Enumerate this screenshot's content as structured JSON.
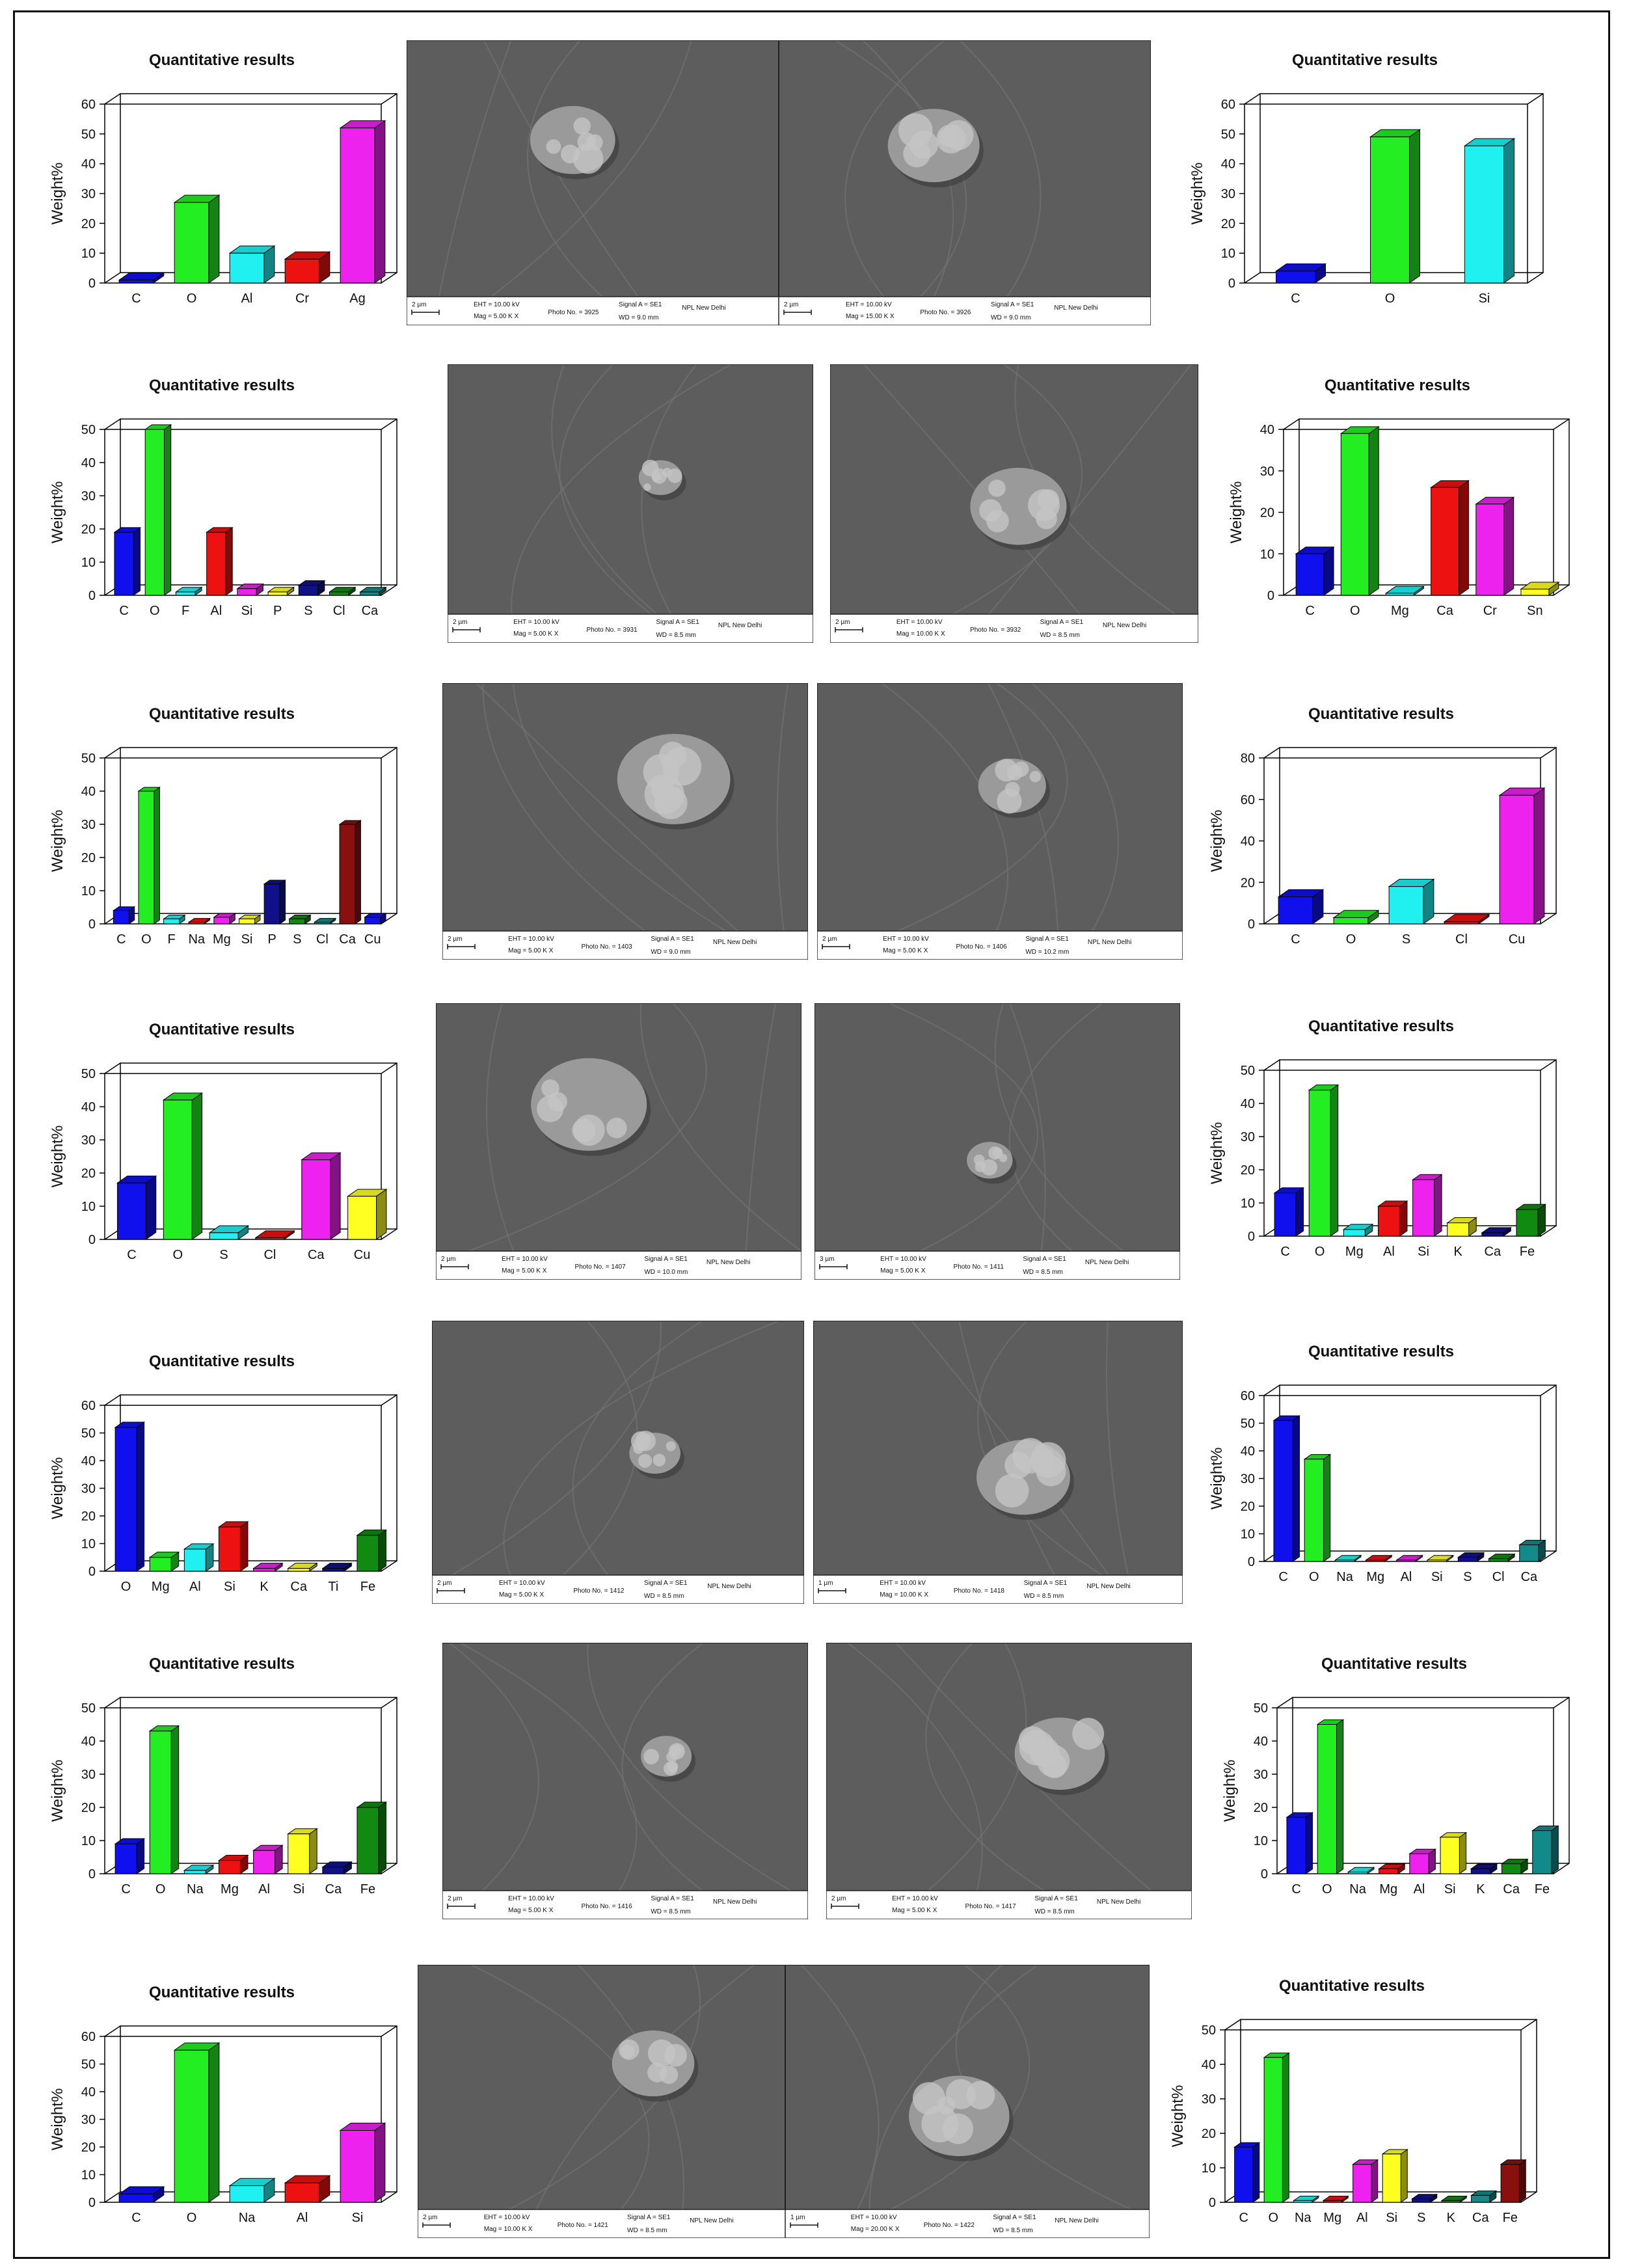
{
  "chart_data": [
    {
      "type": "bar",
      "title": "Quantitative results",
      "ylabel": "Weight%",
      "ylim": [
        0,
        60
      ],
      "yticks": [
        0,
        10,
        20,
        30,
        40,
        50,
        60
      ],
      "categories": [
        "C",
        "O",
        "Al",
        "Cr",
        "Ag"
      ],
      "values": [
        1,
        27,
        10,
        8,
        52
      ]
    },
    {
      "type": "bar",
      "title": "Quantitative results",
      "ylabel": "Weight%",
      "ylim": [
        0,
        60
      ],
      "yticks": [
        0,
        10,
        20,
        30,
        40,
        50,
        60
      ],
      "categories": [
        "C",
        "O",
        "Si"
      ],
      "values": [
        4,
        49,
        46
      ]
    },
    {
      "type": "bar",
      "title": "Quantitative results",
      "ylabel": "Weight%",
      "ylim": [
        0,
        50
      ],
      "yticks": [
        0,
        10,
        20,
        30,
        40,
        50
      ],
      "categories": [
        "C",
        "O",
        "F",
        "Al",
        "Si",
        "P",
        "S",
        "Cl",
        "Ca"
      ],
      "values": [
        19,
        50,
        1,
        19,
        2,
        1,
        3,
        1,
        1
      ]
    },
    {
      "type": "bar",
      "title": "Quantitative results",
      "ylabel": "Weight%",
      "ylim": [
        0,
        40
      ],
      "yticks": [
        0,
        10,
        20,
        30,
        40
      ],
      "categories": [
        "C",
        "O",
        "Mg",
        "Ca",
        "Cr",
        "Sn"
      ],
      "values": [
        10,
        39,
        0.5,
        26,
        22,
        1.5
      ]
    },
    {
      "type": "bar",
      "title": "Quantitative results",
      "ylabel": "Weight%",
      "ylim": [
        0,
        50
      ],
      "yticks": [
        0,
        10,
        20,
        30,
        40,
        50
      ],
      "categories": [
        "C",
        "O",
        "F",
        "Na",
        "Mg",
        "Si",
        "P",
        "S",
        "Cl",
        "Ca",
        "Cu"
      ],
      "values": [
        4,
        40,
        1.5,
        0.5,
        2,
        1.5,
        12,
        1.5,
        0.5,
        30,
        2
      ]
    },
    {
      "type": "bar",
      "title": "Quantitative results",
      "ylabel": "Weight%",
      "ylim": [
        0,
        80
      ],
      "yticks": [
        0,
        20,
        40,
        60,
        80
      ],
      "categories": [
        "C",
        "O",
        "S",
        "Cl",
        "Cu"
      ],
      "values": [
        13,
        3,
        18,
        1,
        62
      ]
    },
    {
      "type": "bar",
      "title": "Quantitative results",
      "ylabel": "Weight%",
      "ylim": [
        0,
        50
      ],
      "yticks": [
        0,
        10,
        20,
        30,
        40,
        50
      ],
      "categories": [
        "C",
        "O",
        "S",
        "Cl",
        "Ca",
        "Cu"
      ],
      "values": [
        17,
        42,
        2,
        0.5,
        24,
        13
      ]
    },
    {
      "type": "bar",
      "title": "Quantitative results",
      "ylabel": "Weight%",
      "ylim": [
        0,
        50
      ],
      "yticks": [
        0,
        10,
        20,
        30,
        40,
        50
      ],
      "categories": [
        "C",
        "O",
        "Mg",
        "Al",
        "Si",
        "K",
        "Ca",
        "Fe"
      ],
      "values": [
        13,
        44,
        2,
        9,
        17,
        4,
        1,
        8
      ]
    },
    {
      "type": "bar",
      "title": "Quantitative results",
      "ylabel": "Weight%",
      "ylim": [
        0,
        60
      ],
      "yticks": [
        0,
        10,
        20,
        30,
        40,
        50,
        60
      ],
      "categories": [
        "O",
        "Mg",
        "Al",
        "Si",
        "K",
        "Ca",
        "Ti",
        "Fe"
      ],
      "values": [
        52,
        5,
        8,
        16,
        1,
        1,
        1,
        13
      ]
    },
    {
      "type": "bar",
      "title": "Quantitative results",
      "ylabel": "Weight%",
      "ylim": [
        0,
        60
      ],
      "yticks": [
        0,
        10,
        20,
        30,
        40,
        50,
        60
      ],
      "categories": [
        "C",
        "O",
        "Na",
        "Mg",
        "Al",
        "Si",
        "S",
        "Cl",
        "Ca"
      ],
      "values": [
        51,
        37,
        0.5,
        0.5,
        0.5,
        0.5,
        1.5,
        1,
        6
      ]
    },
    {
      "type": "bar",
      "title": "Quantitative results",
      "ylabel": "Weight%",
      "ylim": [
        0,
        50
      ],
      "yticks": [
        0,
        10,
        20,
        30,
        40,
        50
      ],
      "categories": [
        "C",
        "O",
        "Na",
        "Mg",
        "Al",
        "Si",
        "Ca",
        "Fe"
      ],
      "values": [
        9,
        43,
        1,
        4,
        7,
        12,
        2,
        20
      ]
    },
    {
      "type": "bar",
      "title": "Quantitative results",
      "ylabel": "Weight%",
      "ylim": [
        0,
        50
      ],
      "yticks": [
        0,
        10,
        20,
        30,
        40,
        50
      ],
      "categories": [
        "C",
        "O",
        "Na",
        "Mg",
        "Al",
        "Si",
        "K",
        "Ca",
        "Fe"
      ],
      "values": [
        17,
        45,
        0.5,
        1.5,
        6,
        11,
        1.5,
        3,
        13
      ]
    },
    {
      "type": "bar",
      "title": "Quantitative results",
      "ylabel": "Weight%",
      "ylim": [
        0,
        60
      ],
      "yticks": [
        0,
        10,
        20,
        30,
        40,
        50,
        60
      ],
      "categories": [
        "C",
        "O",
        "Na",
        "Al",
        "Si"
      ],
      "values": [
        3,
        55,
        6,
        7,
        26
      ]
    },
    {
      "type": "bar",
      "title": "Quantitative results",
      "ylabel": "Weight%",
      "ylim": [
        0,
        50
      ],
      "yticks": [
        0,
        10,
        20,
        30,
        40,
        50
      ],
      "categories": [
        "C",
        "O",
        "Na",
        "Mg",
        "Al",
        "Si",
        "S",
        "K",
        "Ca",
        "Fe"
      ],
      "values": [
        16,
        42,
        0.5,
        0.5,
        11,
        14,
        1,
        0.5,
        2,
        11
      ]
    }
  ],
  "palette": [
    "#1010ee",
    "#22ee22",
    "#20f0f0",
    "#ee1111",
    "#ee22ee",
    "#ffff22",
    "#10108a",
    "#108a10",
    "#128a8a",
    "#8a1010"
  ],
  "micrographs": [
    {
      "scale": "2 µm",
      "eht": "EHT = 10.00 kV",
      "mag": "Mag = 5.00 K X",
      "photo": "Photo No. = 3925",
      "signal": "Signal A = SE1",
      "wd": "WD = 9.0 mm",
      "lab": "NPL New Delhi"
    },
    {
      "scale": "2 µm",
      "eht": "EHT = 10.00 kV",
      "mag": "Mag = 15.00 K X",
      "photo": "Photo No. = 3926",
      "signal": "Signal A = SE1",
      "wd": "WD = 9.0 mm",
      "lab": "NPL New Delhi"
    },
    {
      "scale": "2 µm",
      "eht": "EHT = 10.00 kV",
      "mag": "Mag = 5.00 K X",
      "photo": "Photo No. = 3931",
      "signal": "Signal A = SE1",
      "wd": "WD = 8.5 mm",
      "lab": "NPL New Delhi"
    },
    {
      "scale": "2 µm",
      "eht": "EHT = 10.00 kV",
      "mag": "Mag = 10.00 K X",
      "photo": "Photo No. = 3932",
      "signal": "Signal A = SE1",
      "wd": "WD = 8.5 mm",
      "lab": "NPL New Delhi"
    },
    {
      "scale": "2 µm",
      "eht": "EHT = 10.00 kV",
      "mag": "Mag = 5.00 K X",
      "photo": "Photo No. = 1403",
      "signal": "Signal A = SE1",
      "wd": "WD = 9.0 mm",
      "lab": "NPL New Delhi"
    },
    {
      "scale": "2 µm",
      "eht": "EHT = 10.00 kV",
      "mag": "Mag = 5.00 K X",
      "photo": "Photo No. = 1406",
      "signal": "Signal A = SE1",
      "wd": "WD = 10.2 mm",
      "lab": "NPL New Delhi"
    },
    {
      "scale": "2 µm",
      "eht": "EHT = 10.00 kV",
      "mag": "Mag = 5.00 K X",
      "photo": "Photo No. = 1407",
      "signal": "Signal A = SE1",
      "wd": "WD = 10.0 mm",
      "lab": "NPL New Delhi"
    },
    {
      "scale": "3 µm",
      "eht": "EHT = 10.00 kV",
      "mag": "Mag = 5.00 K X",
      "photo": "Photo No. = 1411",
      "signal": "Signal A = SE1",
      "wd": "WD = 8.5 mm",
      "lab": "NPL New Delhi"
    },
    {
      "scale": "2 µm",
      "eht": "EHT = 10.00 kV",
      "mag": "Mag = 5.00 K X",
      "photo": "Photo No. = 1412",
      "signal": "Signal A = SE1",
      "wd": "WD = 8.5 mm",
      "lab": "NPL New Delhi"
    },
    {
      "scale": "1 µm",
      "eht": "EHT = 10.00 kV",
      "mag": "Mag = 10.00 K X",
      "photo": "Photo No. = 1418",
      "signal": "Signal A = SE1",
      "wd": "WD = 8.5 mm",
      "lab": "NPL New Delhi"
    },
    {
      "scale": "2 µm",
      "eht": "EHT = 10.00 kV",
      "mag": "Mag = 5.00 K X",
      "photo": "Photo No. = 1416",
      "signal": "Signal A = SE1",
      "wd": "WD = 8.5 mm",
      "lab": "NPL New Delhi"
    },
    {
      "scale": "2 µm",
      "eht": "EHT = 10.00 kV",
      "mag": "Mag = 5.00 K X",
      "photo": "Photo No. = 1417",
      "signal": "Signal A = SE1",
      "wd": "WD = 8.5 mm",
      "lab": "NPL New Delhi"
    },
    {
      "scale": "2 µm",
      "eht": "EHT = 10.00 kV",
      "mag": "Mag = 10.00 K X",
      "photo": "Photo No. = 1421",
      "signal": "Signal A = SE1",
      "wd": "WD = 8.5 mm",
      "lab": "NPL New Delhi"
    },
    {
      "scale": "1 µm",
      "eht": "EHT = 10.00 kV",
      "mag": "Mag = 20.00 K X",
      "photo": "Photo No. = 1422",
      "signal": "Signal A = SE1",
      "wd": "WD = 8.5 mm",
      "lab": "NPL New Delhi"
    }
  ]
}
